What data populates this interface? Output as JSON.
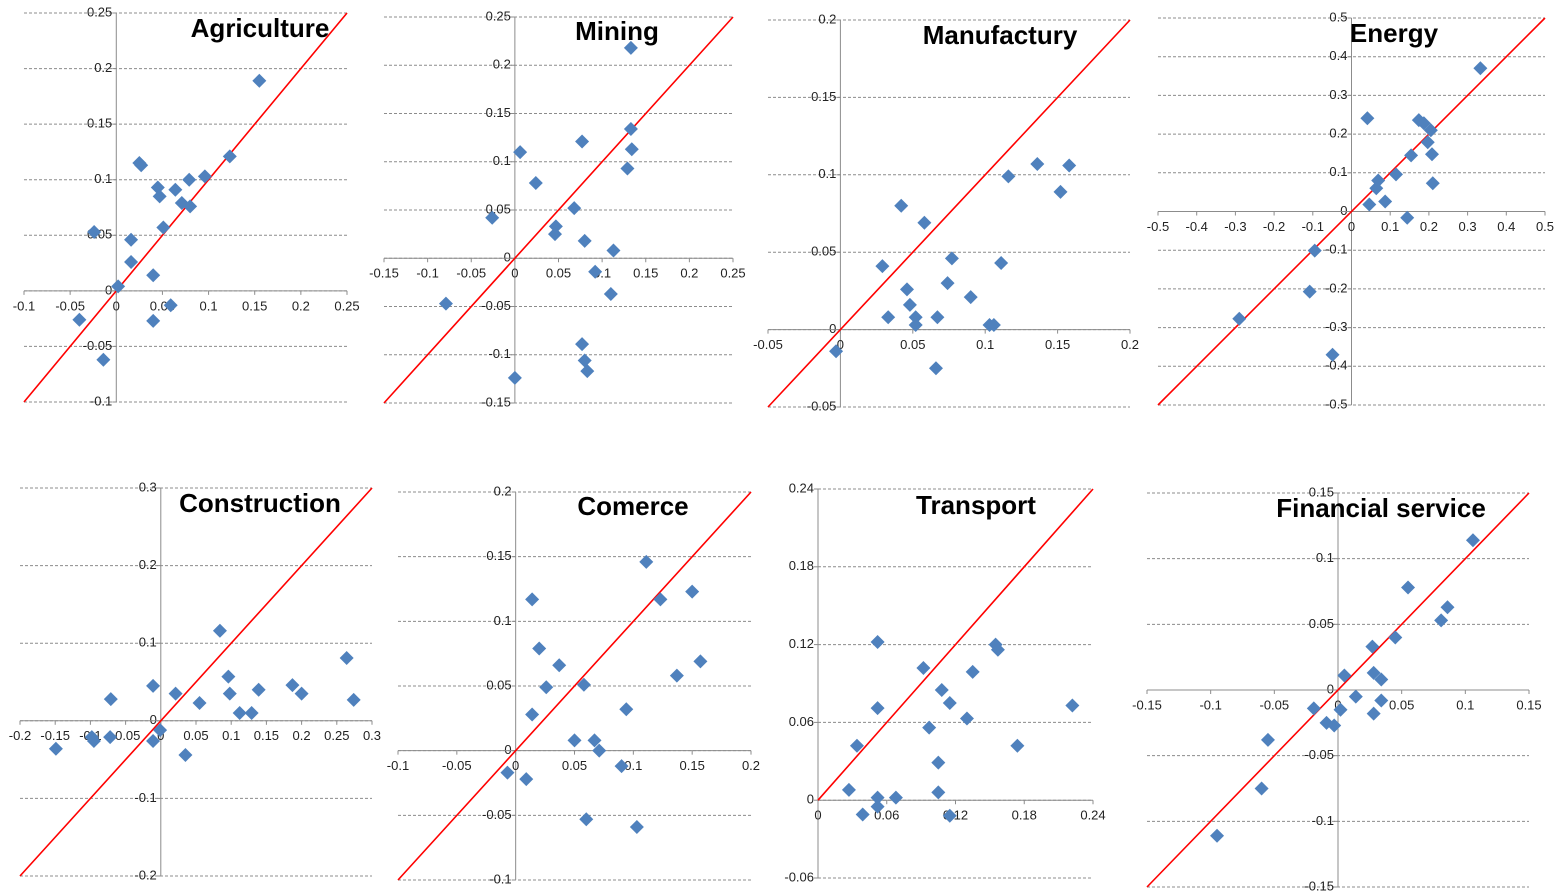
{
  "chart_data": [
    {
      "type": "scatter",
      "title": "Agriculture",
      "color": "#4f81bd",
      "line_color": "#ff0000",
      "x": [
        -0.024,
        -0.04,
        -0.014,
        0.016,
        0.016,
        0.002,
        0.025,
        0.027,
        0.045,
        0.047,
        0.051,
        0.04,
        0.04,
        0.059,
        0.064,
        0.071,
        0.079,
        0.08,
        0.096,
        0.123,
        0.155
      ],
      "values": [
        0.053,
        -0.026,
        -0.062,
        0.046,
        0.026,
        0.004,
        0.115,
        0.113,
        0.093,
        0.085,
        0.057,
        0.014,
        -0.027,
        -0.013,
        0.091,
        0.079,
        0.1,
        0.076,
        0.103,
        0.121,
        0.189
      ],
      "xlim": [
        -0.1,
        0.25
      ],
      "ylim": [
        -0.1,
        0.25
      ],
      "xticks": [
        -0.1,
        -0.05,
        0,
        0.05,
        0.1,
        0.15,
        0.2,
        0.25
      ],
      "yticks": [
        -0.1,
        -0.05,
        0,
        0.05,
        0.1,
        0.15,
        0.2,
        0.25
      ]
    },
    {
      "type": "scatter",
      "title": "Mining",
      "color": "#4f81bd",
      "line_color": "#ff0000",
      "x": [
        -0.026,
        -0.079,
        0.006,
        0.024,
        0,
        0.047,
        0.046,
        0.068,
        0.077,
        0.08,
        0.077,
        0.08,
        0.083,
        0.092,
        0.11,
        0.113,
        0.129,
        0.133,
        0.134,
        0.133
      ],
      "values": [
        0.042,
        -0.047,
        0.11,
        0.078,
        -0.124,
        0.033,
        0.025,
        0.052,
        0.121,
        0.018,
        -0.089,
        -0.106,
        -0.117,
        -0.014,
        -0.037,
        0.008,
        0.093,
        0.134,
        0.113,
        0.218
      ],
      "xlim": [
        -0.15,
        0.25
      ],
      "ylim": [
        -0.15,
        0.25
      ],
      "xticks": [
        -0.15,
        -0.1,
        -0.05,
        0,
        0.05,
        0.1,
        0.15,
        0.2,
        0.25
      ],
      "yticks": [
        -0.15,
        -0.1,
        -0.05,
        0,
        0.05,
        0.1,
        0.15,
        0.2,
        0.25
      ]
    },
    {
      "type": "scatter",
      "title": "Manufactury",
      "color": "#4f81bd",
      "line_color": "#ff0000",
      "x": [
        -0.003,
        0.029,
        0.033,
        0.042,
        0.046,
        0.048,
        0.052,
        0.052,
        0.058,
        0.067,
        0.066,
        0.074,
        0.077,
        0.09,
        0.103,
        0.106,
        0.111,
        0.116,
        0.136,
        0.152,
        0.158
      ],
      "values": [
        -0.014,
        0.041,
        0.008,
        0.08,
        0.026,
        0.016,
        0.008,
        0.003,
        0.069,
        0.008,
        -0.025,
        0.03,
        0.046,
        0.021,
        0.003,
        0.003,
        0.043,
        0.099,
        0.107,
        0.089,
        0.106
      ],
      "xlim": [
        -0.05,
        0.2
      ],
      "ylim": [
        -0.05,
        0.2
      ],
      "xticks": [
        -0.05,
        0,
        0.05,
        0.1,
        0.15,
        0.2
      ],
      "yticks": [
        -0.05,
        0,
        0.05,
        0.1,
        0.15,
        0.2
      ]
    },
    {
      "type": "scatter",
      "title": "Energy",
      "color": "#4f81bd",
      "line_color": "#ff0000",
      "x": [
        -0.29,
        -0.108,
        -0.095,
        -0.049,
        0.041,
        0.046,
        0.064,
        0.069,
        0.087,
        0.115,
        0.144,
        0.154,
        0.174,
        0.187,
        0.197,
        0.205,
        0.208,
        0.21,
        0.333
      ],
      "values": [
        -0.277,
        -0.207,
        -0.101,
        -0.37,
        0.241,
        0.018,
        0.06,
        0.08,
        0.026,
        0.096,
        -0.016,
        0.145,
        0.236,
        0.228,
        0.179,
        0.21,
        0.148,
        0.073,
        0.37
      ],
      "xlim": [
        -0.5,
        0.5
      ],
      "ylim": [
        -0.5,
        0.5
      ],
      "xticks": [
        -0.5,
        -0.4,
        -0.3,
        -0.2,
        -0.1,
        0,
        0.1,
        0.2,
        0.3,
        0.4,
        0.5
      ],
      "yticks": [
        -0.5,
        -0.4,
        -0.3,
        -0.2,
        -0.1,
        0,
        0.1,
        0.2,
        0.3,
        0.4,
        0.5
      ]
    },
    {
      "type": "scatter",
      "title": "Construction",
      "color": "#4f81bd",
      "line_color": "#ff0000",
      "x": [
        -0.149,
        -0.098,
        -0.095,
        -0.072,
        -0.071,
        -0.011,
        -0.011,
        -0.001,
        0.021,
        0.035,
        0.055,
        0.084,
        0.096,
        0.098,
        0.112,
        0.129,
        0.139,
        0.187,
        0.2,
        0.264,
        0.274
      ],
      "values": [
        -0.036,
        -0.021,
        -0.026,
        -0.021,
        0.028,
        0.045,
        -0.026,
        -0.012,
        0.035,
        -0.044,
        0.023,
        0.116,
        0.057,
        0.035,
        0.01,
        0.01,
        0.04,
        0.046,
        0.035,
        0.081,
        0.027
      ],
      "xlim": [
        -0.2,
        0.3
      ],
      "ylim": [
        -0.2,
        0.3
      ],
      "xticks": [
        -0.2,
        -0.15,
        -0.1,
        -0.05,
        0,
        0.05,
        0.1,
        0.15,
        0.2,
        0.25,
        0.3
      ],
      "yticks": [
        -0.2,
        -0.1,
        0,
        0.1,
        0.2,
        0.3
      ]
    },
    {
      "type": "scatter",
      "title": "Comerce",
      "color": "#4f81bd",
      "line_color": "#ff0000",
      "x": [
        -0.007,
        0.009,
        0.014,
        0.014,
        0.02,
        0.026,
        0.037,
        0.05,
        0.058,
        0.06,
        0.067,
        0.071,
        0.09,
        0.094,
        0.103,
        0.111,
        0.123,
        0.137,
        0.15,
        0.157
      ],
      "values": [
        -0.017,
        -0.022,
        0.028,
        0.117,
        0.079,
        0.049,
        0.066,
        0.008,
        0.051,
        -0.053,
        0.008,
        0,
        -0.012,
        0.032,
        -0.059,
        0.146,
        0.117,
        0.058,
        0.123,
        0.069
      ],
      "xlim": [
        -0.1,
        0.2
      ],
      "ylim": [
        -0.1,
        0.2
      ],
      "xticks": [
        -0.1,
        -0.05,
        0,
        0.05,
        0.1,
        0.15,
        0.2
      ],
      "yticks": [
        -0.1,
        -0.05,
        0,
        0.05,
        0.1,
        0.15,
        0.2
      ]
    },
    {
      "type": "scatter",
      "title": "Transport",
      "color": "#4f81bd",
      "line_color": "#ff0000",
      "x": [
        0.027,
        0.034,
        0.039,
        0.052,
        0.052,
        0.052,
        0.052,
        0.068,
        0.092,
        0.097,
        0.105,
        0.105,
        0.108,
        0.115,
        0.115,
        0.13,
        0.135,
        0.155,
        0.157,
        0.174,
        0.222
      ],
      "values": [
        0.008,
        0.042,
        -0.011,
        0.122,
        0.071,
        0.002,
        -0.005,
        0.002,
        0.102,
        0.056,
        0.029,
        0.006,
        0.085,
        0.075,
        -0.012,
        0.063,
        0.099,
        0.12,
        0.116,
        0.042,
        0.073
      ],
      "xlim": [
        0,
        0.24
      ],
      "ylim": [
        -0.06,
        0.24
      ],
      "xticks": [
        0,
        0.06,
        0.12,
        0.18,
        0.24
      ],
      "yticks": [
        -0.06,
        0,
        0.06,
        0.12,
        0.18,
        0.24
      ]
    },
    {
      "type": "scatter",
      "title": "Financial service",
      "color": "#4f81bd",
      "line_color": "#ff0000",
      "x": [
        -0.095,
        -0.06,
        -0.055,
        -0.019,
        -0.009,
        -0.003,
        0.002,
        0.005,
        0.014,
        0.027,
        0.028,
        0.028,
        0.034,
        0.034,
        0.045,
        0.055,
        0.081,
        0.086,
        0.106
      ],
      "values": [
        -0.111,
        -0.075,
        -0.038,
        -0.014,
        -0.025,
        -0.027,
        -0.015,
        0.011,
        -0.005,
        0.033,
        0.013,
        -0.018,
        0.008,
        -0.008,
        0.04,
        0.078,
        0.053,
        0.063,
        0.114
      ],
      "xlim": [
        -0.15,
        0.15
      ],
      "ylim": [
        -0.15,
        0.15
      ],
      "xticks": [
        -0.15,
        -0.1,
        -0.05,
        0,
        0.05,
        0.1,
        0.15
      ],
      "yticks": [
        -0.15,
        -0.1,
        -0.05,
        0,
        0.05,
        0.1,
        0.15
      ]
    }
  ]
}
